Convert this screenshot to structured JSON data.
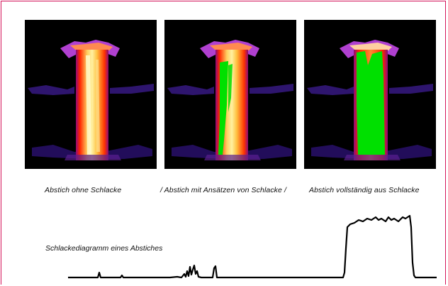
{
  "captions": {
    "no_slag": "Abstich ohne Schlacke",
    "partial_slag": "/ Abstich mit Ansätzen von Schlacke /",
    "full_slag": "Abstich vollständig aus Schlacke"
  },
  "diagram": {
    "title": "Schlackediagramm eines Abstiches"
  },
  "colors": {
    "frame": "#d4145a",
    "slag_highlight": "#00e000",
    "thermal_hot": "#ffe070",
    "thermal_mid": "#ff4a00",
    "thermal_cool": "#a020c0",
    "diagram_line": "#000000"
  }
}
